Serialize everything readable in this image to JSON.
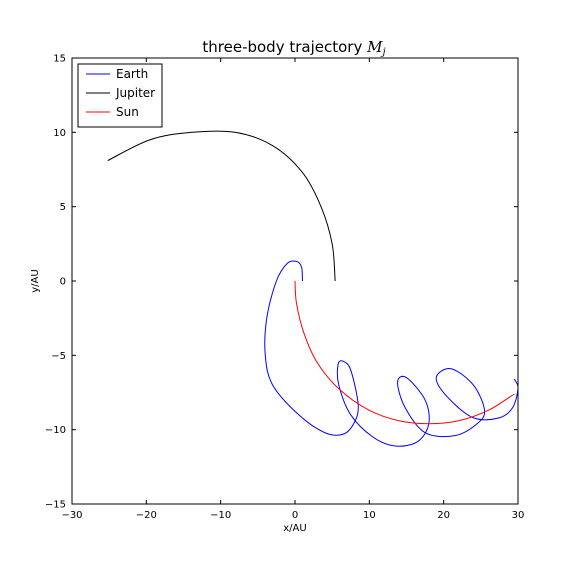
{
  "chart_data": {
    "type": "line",
    "title": "three-body trajectory",
    "title_math_symbol": "M",
    "title_math_subscript": "j",
    "xlabel": "x/AU",
    "ylabel": "y/AU",
    "xlim": [
      -30,
      30
    ],
    "ylim": [
      -15,
      15
    ],
    "xticks": [
      -30,
      -20,
      -10,
      0,
      10,
      20,
      30
    ],
    "yticks": [
      -15,
      -10,
      -5,
      0,
      5,
      10,
      15
    ],
    "xtick_labels": [
      "−30",
      "−20",
      "−10",
      "0",
      "10",
      "20",
      "30"
    ],
    "ytick_labels": [
      "−15",
      "−10",
      "−5",
      "0",
      "5",
      "10",
      "15"
    ],
    "grid": false,
    "legend_position": "top-left",
    "series": [
      {
        "name": "Earth",
        "color": "#0000ff",
        "points": [
          [
            1.0,
            0.0
          ],
          [
            0.9,
            0.9
          ],
          [
            0.3,
            1.3
          ],
          [
            -1.0,
            1.2
          ],
          [
            -2.5,
            0.0
          ],
          [
            -3.8,
            -2.5
          ],
          [
            -4.0,
            -5.0
          ],
          [
            -3.0,
            -7.0
          ],
          [
            0.5,
            -9.0
          ],
          [
            4.0,
            -10.2
          ],
          [
            6.5,
            -10.3
          ],
          [
            8.0,
            -9.5
          ],
          [
            8.5,
            -8.3
          ],
          [
            7.5,
            -6.0
          ],
          [
            6.5,
            -5.4
          ],
          [
            5.8,
            -5.6
          ],
          [
            5.9,
            -7.0
          ],
          [
            7.5,
            -9.0
          ],
          [
            10.5,
            -10.5
          ],
          [
            13.5,
            -11.1
          ],
          [
            16.5,
            -10.8
          ],
          [
            18.0,
            -9.6
          ],
          [
            17.5,
            -8.0
          ],
          [
            15.0,
            -6.5
          ],
          [
            13.8,
            -6.8
          ],
          [
            14.8,
            -8.5
          ],
          [
            17.5,
            -10.2
          ],
          [
            21.5,
            -10.4
          ],
          [
            24.5,
            -9.6
          ],
          [
            25.5,
            -8.7
          ],
          [
            24.0,
            -7.0
          ],
          [
            21.0,
            -5.9
          ],
          [
            19.0,
            -6.5
          ],
          [
            20.5,
            -7.8
          ],
          [
            24.0,
            -9.2
          ],
          [
            27.5,
            -9.2
          ],
          [
            29.3,
            -8.5
          ],
          [
            30.0,
            -7.2
          ],
          [
            29.5,
            -6.6
          ]
        ]
      },
      {
        "name": "Jupiter",
        "color": "#000000",
        "points": [
          [
            5.4,
            0.0
          ],
          [
            5.0,
            2.5
          ],
          [
            3.5,
            5.0
          ],
          [
            1.0,
            7.3
          ],
          [
            -3.0,
            9.1
          ],
          [
            -8.0,
            10.0
          ],
          [
            -14.0,
            10.0
          ],
          [
            -19.5,
            9.5
          ],
          [
            -25.2,
            8.1
          ]
        ]
      },
      {
        "name": "Sun",
        "color": "#ff0000",
        "points": [
          [
            0.0,
            0.0
          ],
          [
            0.2,
            -1.5
          ],
          [
            1.2,
            -3.5
          ],
          [
            3.0,
            -5.5
          ],
          [
            6.0,
            -7.3
          ],
          [
            10.0,
            -8.7
          ],
          [
            14.0,
            -9.4
          ],
          [
            18.0,
            -9.6
          ],
          [
            22.0,
            -9.4
          ],
          [
            26.0,
            -8.7
          ],
          [
            29.5,
            -7.6
          ]
        ]
      }
    ]
  }
}
